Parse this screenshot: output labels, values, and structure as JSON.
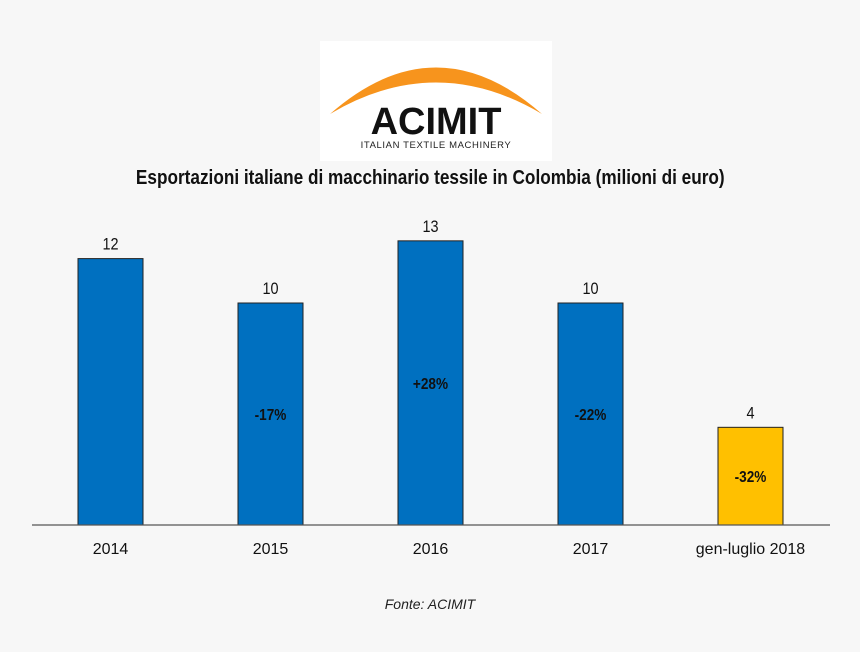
{
  "logo": {
    "name": "ACIMIT",
    "tagline": "ITALIAN TEXTILE MACHINERY",
    "arc_color": "#f7941d"
  },
  "chart_data": {
    "type": "bar",
    "title": "Esportazioni italiane di macchinario tessile in Colombia (milioni di euro)",
    "categories": [
      "2014",
      "2015",
      "2016",
      "2017",
      "gen-luglio 2018"
    ],
    "values": [
      12,
      10,
      12.8,
      10,
      4.4
    ],
    "value_labels": [
      "12",
      "10",
      "13",
      "10",
      "4"
    ],
    "change_labels": [
      "",
      "-17%",
      "+28%",
      "-22%",
      "-32%"
    ],
    "colors": [
      "#0070c0",
      "#0070c0",
      "#0070c0",
      "#0070c0",
      "#ffc000"
    ],
    "ylim": [
      0,
      13.5
    ],
    "grid": false,
    "legend": "none",
    "xlabel": "",
    "ylabel": ""
  },
  "source": "Fonte: ACIMIT"
}
